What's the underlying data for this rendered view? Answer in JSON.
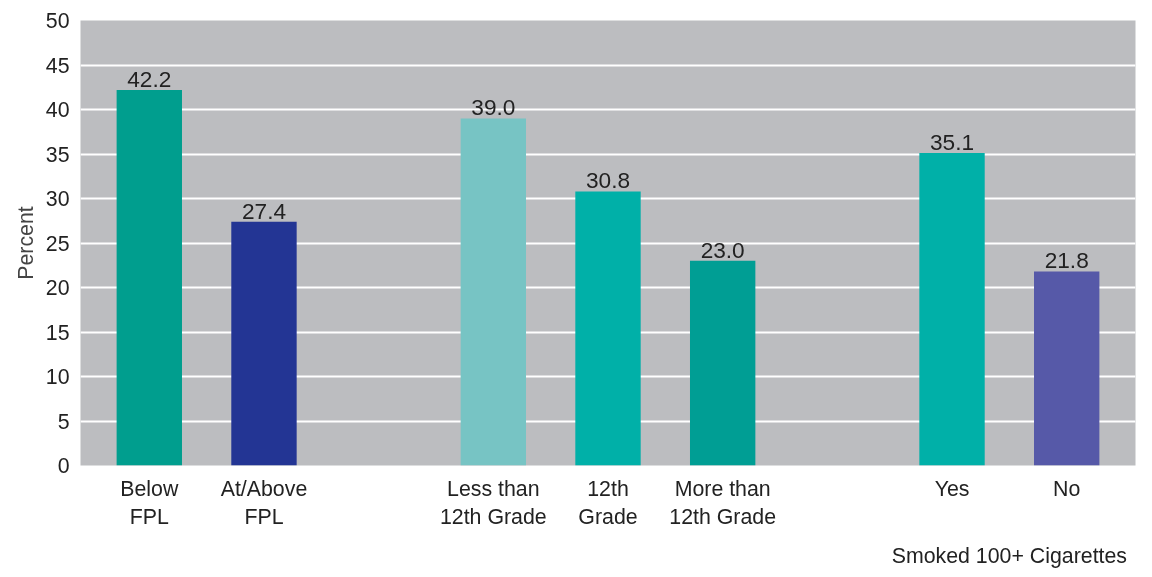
{
  "chart_data": {
    "type": "bar",
    "ylabel": "Percent",
    "categories": [
      "Below\nFPL",
      "At/Above\nFPL",
      null,
      "Less than\n12th Grade",
      "12th\nGrade",
      "More than\n12th Grade",
      null,
      "Yes",
      "No"
    ],
    "values": [
      42.2,
      27.4,
      null,
      39.0,
      30.8,
      23.0,
      null,
      35.1,
      21.8
    ],
    "colors": [
      "#009e8e",
      "#233594",
      null,
      "#77c4c4",
      "#00b0a8",
      "#009e94",
      null,
      "#00b0a8",
      "#5659a8"
    ],
    "ylim": [
      0,
      50
    ],
    "yticks": [
      0,
      5,
      10,
      15,
      20,
      25,
      30,
      35,
      40,
      45,
      50
    ],
    "value_labels": [
      "42.2",
      "27.4",
      null,
      "39.0",
      "30.8",
      "23.0",
      null,
      "35.1",
      "21.8"
    ],
    "grid": "y",
    "annotations": [
      "Smoked 100+ Cigarettes"
    ]
  }
}
